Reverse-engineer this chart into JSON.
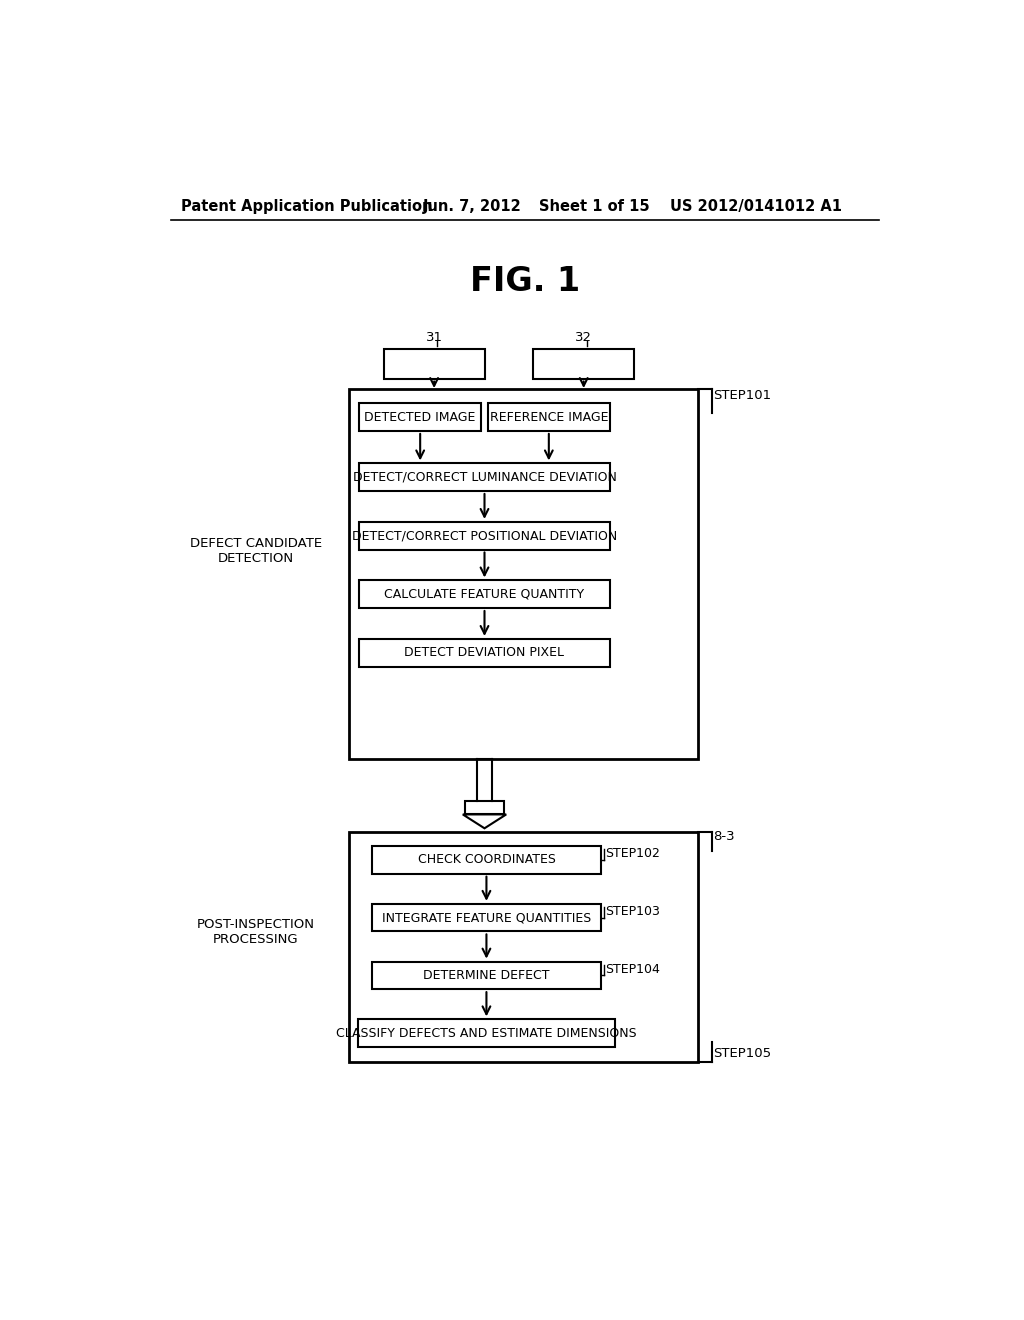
{
  "bg_color": "#ffffff",
  "header_text": "Patent Application Publication",
  "header_date": "Jun. 7, 2012",
  "header_sheet": "Sheet 1 of 15",
  "header_patent": "US 2012/0141012 A1",
  "fig_title": "FIG. 1",
  "label_31": "31",
  "label_32": "32",
  "label_step101": "STEP101",
  "label_step102": "STEP102",
  "label_step103": "STEP103",
  "label_step104": "STEP104",
  "label_step105": "STEP105",
  "label_83": "8-3",
  "label_defect_candidate": "DEFECT CANDIDATE\nDETECTION",
  "label_post_inspection": "POST-INSPECTION\nPROCESSING",
  "box_detected_image": "DETECTED IMAGE",
  "box_reference_image": "REFERENCE IMAGE",
  "box_luminance": "DETECT/CORRECT LUMINANCE DEVIATION",
  "box_positional": "DETECT/CORRECT POSITIONAL DEVIATION",
  "box_feature": "CALCULATE FEATURE QUANTITY",
  "box_deviation": "DETECT DEVIATION PIXEL",
  "box_check_coords": "CHECK COORDINATES",
  "box_integrate": "INTEGRATE FEATURE QUANTITIES",
  "box_determine": "DETERMINE DEFECT",
  "box_classify": "CLASSIFY DEFECTS AND ESTIMATE DIMENSIONS"
}
